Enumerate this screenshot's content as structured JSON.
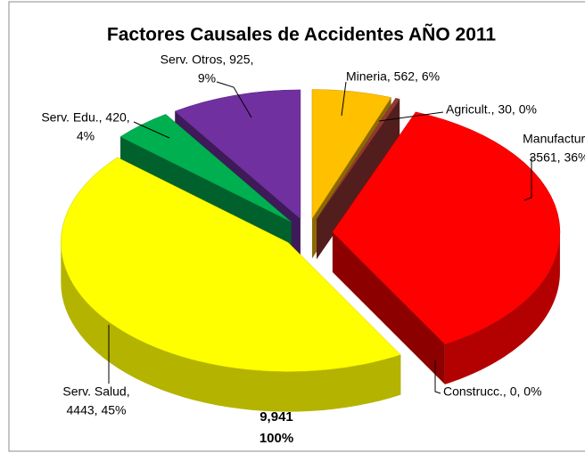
{
  "chart_data": {
    "type": "pie3d",
    "title": "Factores Causales de Accidentes AÑO 2011",
    "values": [
      562,
      30,
      3561,
      0,
      4443,
      420,
      925
    ],
    "labels": [
      [
        "Mineria, 562, 6%"
      ],
      [
        "Agricult., 30, 0%"
      ],
      [
        "Manufactura,",
        "3561, 36%"
      ],
      [
        "Construcc., 0, 0%"
      ],
      [
        "Serv. Salud,",
        "4443, 45%"
      ],
      [
        "Serv.  Edu., 420,",
        "4%"
      ],
      [
        "Serv. Otros, 925,",
        "9%"
      ]
    ],
    "colors": [
      "#ffc000",
      "#953735",
      "#ff0000",
      "#17375e",
      "#ffff00",
      "#00b050",
      "#7030a0"
    ],
    "total_label": "9,941",
    "total_percent_label": "100%"
  }
}
